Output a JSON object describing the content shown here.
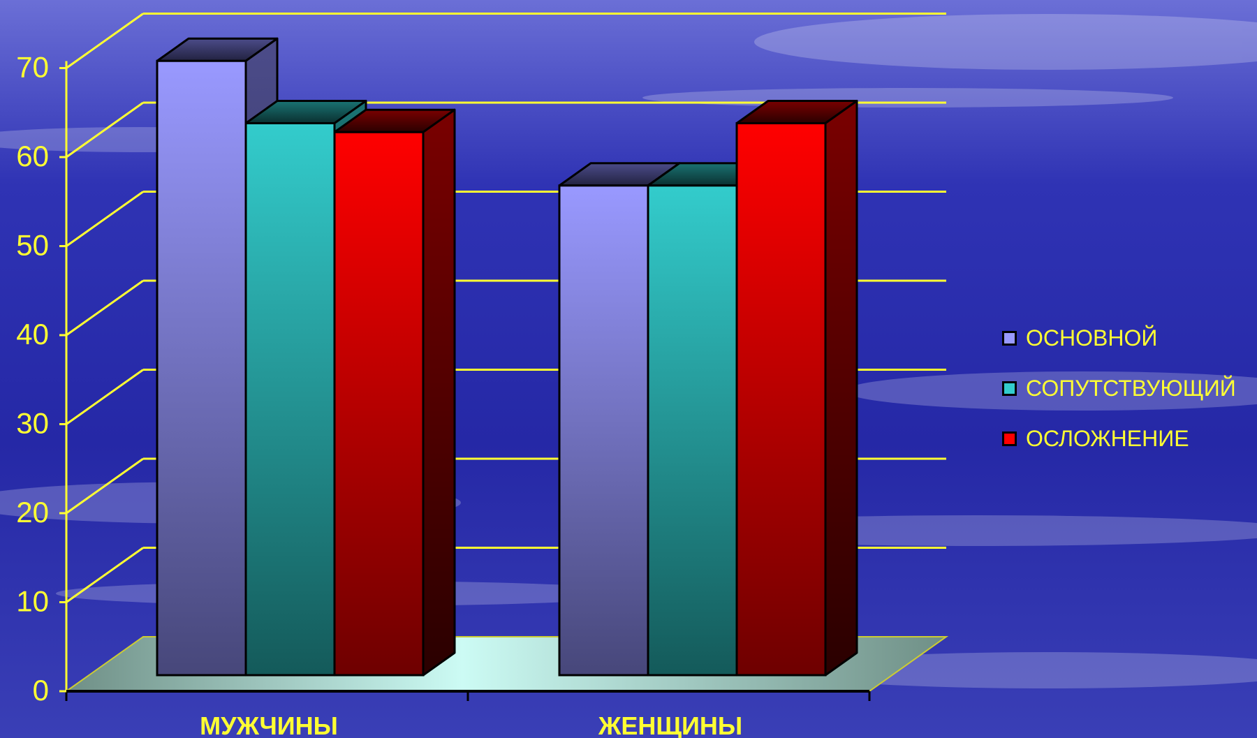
{
  "chart_data": {
    "type": "bar",
    "categories": [
      "МУЖЧИНЫ",
      "ЖЕНЩИНЫ"
    ],
    "series": [
      {
        "name": "ОСНОВНОЙ",
        "values": [
          69,
          55
        ],
        "color": "#9999ff"
      },
      {
        "name": "СОПУТСТВУЮЩИЙ",
        "values": [
          62,
          55
        ],
        "color": "#33cccc"
      },
      {
        "name": "ОСЛОЖНЕНИЕ",
        "values": [
          61,
          62
        ],
        "color": "#ff0000"
      }
    ],
    "yticks": [
      0,
      10,
      20,
      30,
      40,
      50,
      60,
      70
    ],
    "ylim": [
      0,
      70
    ],
    "grid": true,
    "legend_position": "right",
    "style": "3d-clustered-column",
    "colors": {
      "text": "#ffff33",
      "gridline": "#ffff33",
      "floor": "#7fa39a",
      "background": "#2326a8"
    }
  }
}
